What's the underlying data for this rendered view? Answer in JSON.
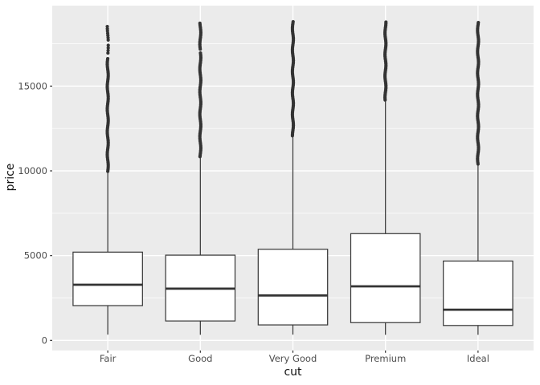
{
  "figure": {
    "background": "#FFFFFF",
    "panel_background": "#EBEBEB",
    "grid_color": "#FFFFFF",
    "geom_color": "#333333",
    "box_fill": "#FFFFFF",
    "tick_label_color": "#4D4D4D",
    "axis_title_color": "#111111"
  },
  "chart_data": {
    "type": "boxplot",
    "title": "",
    "xlabel": "cut",
    "ylabel": "price",
    "categories": [
      "Fair",
      "Good",
      "Very Good",
      "Premium",
      "Ideal"
    ],
    "y_ticks": [
      0,
      5000,
      10000,
      15000
    ],
    "y_minor_ticks": [
      2500,
      7500,
      12500,
      17500
    ],
    "ylim": [
      -599,
      19748
    ],
    "grid": "major-and-minor",
    "legend": "none",
    "series": [
      {
        "category": "Fair",
        "whisker_low": 337,
        "q1": 2050,
        "median": 3282,
        "q3": 5206,
        "whisker_high": 9930,
        "outlier_max": 18574,
        "outlier_segments": [
          [
            9970,
            16650,
            1.9
          ],
          [
            16950,
            17550,
            3.2
          ],
          [
            17720,
            18574,
            2.8
          ]
        ]
      },
      {
        "category": "Good",
        "whisker_low": 327,
        "q1": 1145,
        "median": 3051,
        "q3": 5028,
        "whisker_high": 10800,
        "outlier_max": 18788,
        "outlier_segments": [
          [
            10840,
            16980,
            1.9
          ],
          [
            17180,
            18788,
            1.9
          ]
        ]
      },
      {
        "category": "Very Good",
        "whisker_low": 336,
        "q1": 912,
        "median": 2648,
        "q3": 5373,
        "whisker_high": 12030,
        "outlier_max": 18818,
        "outlier_segments": [
          [
            12070,
            18818,
            1.8
          ]
        ]
      },
      {
        "category": "Premium",
        "whisker_low": 326,
        "q1": 1046,
        "median": 3185,
        "q3": 6296,
        "whisker_high": 14140,
        "outlier_max": 18823,
        "outlier_segments": [
          [
            14180,
            18823,
            1.8
          ]
        ]
      },
      {
        "category": "Ideal",
        "whisker_low": 326,
        "q1": 878,
        "median": 1810,
        "q3": 4679,
        "whisker_high": 10360,
        "outlier_max": 18806,
        "outlier_segments": [
          [
            10400,
            18806,
            1.8
          ]
        ]
      }
    ]
  }
}
